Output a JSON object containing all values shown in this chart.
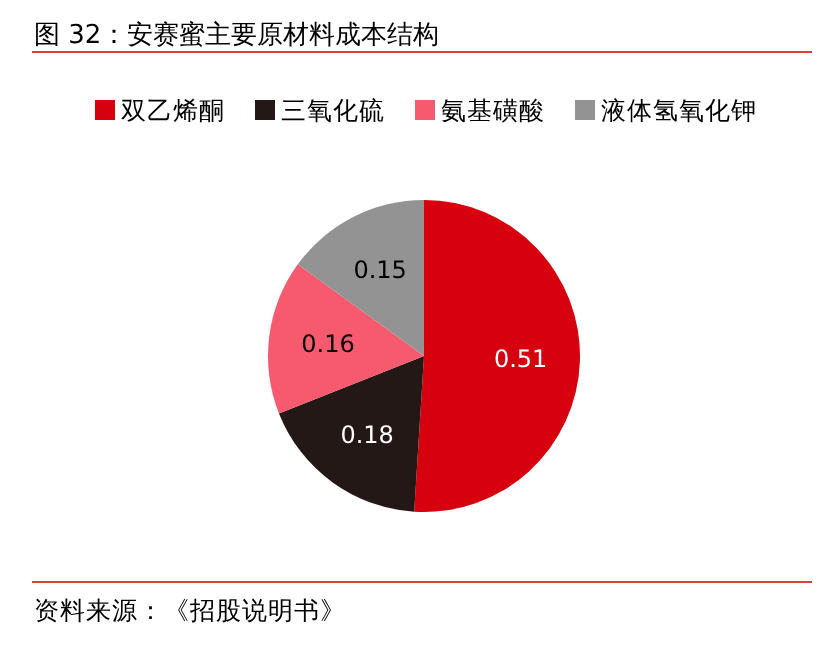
{
  "chart_data": {
    "type": "pie",
    "title": "图 32：安赛蜜主要原材料成本结构",
    "categories": [
      "双乙烯酮",
      "三氧化硫",
      "氨基磺酸",
      "液体氢氧化钾"
    ],
    "values": [
      0.51,
      0.18,
      0.16,
      0.15
    ],
    "colors": [
      "#d7000f",
      "#231815",
      "#f7596e",
      "#939393"
    ],
    "data_labels": true,
    "legend": "top",
    "annotations": [
      "资料来源：《招股说明书》"
    ]
  }
}
